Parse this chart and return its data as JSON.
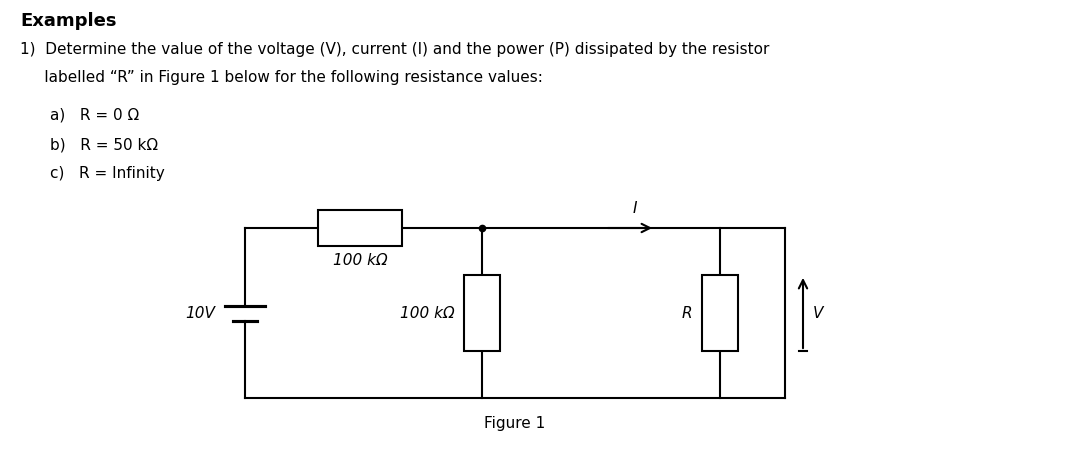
{
  "title": "Examples",
  "problem_line1": "1)  Determine the value of the voltage (V), current (I) and the power (P) dissipated by the resistor",
  "problem_line2": "     labelled “R” in Figure 1 below for the following resistance values:",
  "part_a": "a)   R = 0 Ω",
  "part_b": "b)   R = 50 kΩ",
  "part_c": "c)   R = Infinity",
  "figure_caption": "Figure 1",
  "label_100k_top": "100 kΩ",
  "label_100k_mid": "100 kΩ",
  "label_R": "R",
  "label_10V": "10V",
  "label_I": "I",
  "label_V": "V",
  "bg_color": "#ffffff",
  "line_color": "#000000",
  "text_color": "#000000",
  "fig_width": 10.8,
  "fig_height": 4.7,
  "title_fontsize": 13,
  "body_fontsize": 11,
  "circuit_fontsize": 11
}
